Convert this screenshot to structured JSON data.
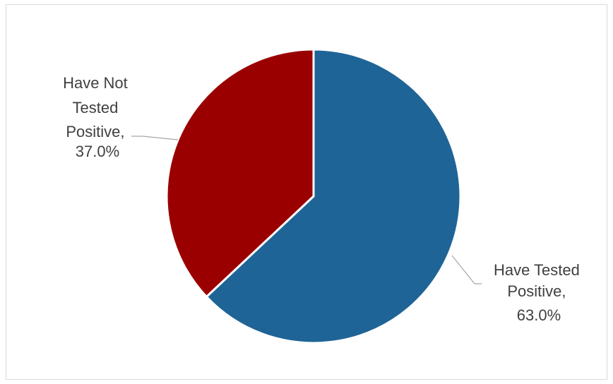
{
  "chart_data": {
    "type": "pie",
    "title": "",
    "slices": [
      {
        "label_lines": [
          "Have Tested",
          "Positive,",
          "63.0%"
        ],
        "name": "Have Tested Positive",
        "value": 63.0,
        "color": "#1F6497"
      },
      {
        "label_lines": [
          "Have Not",
          "Tested",
          "Positive,",
          "37.0%"
        ],
        "name": "Have Not Tested Positive",
        "value": 37.0,
        "color": "#9B0000"
      }
    ],
    "legend": "none",
    "data_labels": "outside-with-leader-lines"
  }
}
